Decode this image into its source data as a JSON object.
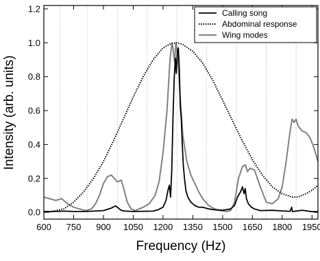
{
  "chart_data": {
    "type": "line",
    "title": "",
    "xlabel": "Frequency (Hz)",
    "ylabel": "Intensity (arb. units)",
    "xlim": [
      600,
      1980
    ],
    "ylim": [
      -0.04,
      1.22
    ],
    "xticks": [
      600,
      750,
      900,
      1050,
      1200,
      1350,
      1500,
      1650,
      1800,
      1950
    ],
    "yticks": [
      0.0,
      0.2,
      0.4,
      0.6,
      0.8,
      1.0,
      1.2
    ],
    "xtick_labels": [
      "600",
      "750",
      "900",
      "1050",
      "1200",
      "1350",
      "1500",
      "1650",
      "1800",
      "1950"
    ],
    "ytick_labels": [
      "0.0",
      "0.2",
      "0.4",
      "0.6",
      "0.8",
      "1.0",
      "1.2"
    ],
    "vertical_gridlines": [
      680,
      820,
      970,
      1120,
      1270,
      1420,
      1570,
      1720,
      1870
    ],
    "legend_position": "top-right",
    "series": [
      {
        "name": "Calling song",
        "style": "solid",
        "color": "#000000",
        "x": [
          600,
          650,
          700,
          750,
          800,
          850,
          900,
          940,
          960,
          970,
          985,
          1000,
          1050,
          1100,
          1150,
          1175,
          1200,
          1215,
          1225,
          1232,
          1238,
          1244,
          1250,
          1256,
          1262,
          1267,
          1272,
          1277,
          1282,
          1287,
          1292,
          1297,
          1302,
          1308,
          1315,
          1325,
          1340,
          1360,
          1380,
          1400,
          1430,
          1460,
          1500,
          1540,
          1560,
          1575,
          1590,
          1600,
          1608,
          1614,
          1620,
          1630,
          1645,
          1660,
          1690,
          1750,
          1800,
          1840,
          1848,
          1851,
          1856,
          1900,
          1950,
          1980
        ],
        "y": [
          0.005,
          0.005,
          0.007,
          0.005,
          0.005,
          0.007,
          0.01,
          0.025,
          0.038,
          0.03,
          0.015,
          0.008,
          0.005,
          0.006,
          0.007,
          0.015,
          0.03,
          0.07,
          0.13,
          0.16,
          0.09,
          0.25,
          0.55,
          0.78,
          0.91,
          0.82,
          0.95,
          0.97,
          0.85,
          0.62,
          0.55,
          0.4,
          0.28,
          0.2,
          0.13,
          0.09,
          0.06,
          0.04,
          0.03,
          0.03,
          0.02,
          0.015,
          0.012,
          0.02,
          0.04,
          0.09,
          0.12,
          0.15,
          0.11,
          0.14,
          0.08,
          0.05,
          0.03,
          0.02,
          0.01,
          0.012,
          0.008,
          0.006,
          0.03,
          0.005,
          0.005,
          0.012,
          0.004,
          0.004
        ]
      },
      {
        "name": "Abdominal response",
        "style": "dotted",
        "color": "#000000",
        "x": [
          620,
          700,
          750,
          800,
          850,
          900,
          950,
          1000,
          1050,
          1100,
          1150,
          1200,
          1240,
          1270,
          1300,
          1350,
          1400,
          1450,
          1500,
          1550,
          1600,
          1650,
          1700,
          1750,
          1800,
          1850,
          1880,
          1920,
          1950,
          1980
        ],
        "y": [
          0.0,
          0.02,
          0.06,
          0.12,
          0.2,
          0.3,
          0.42,
          0.55,
          0.68,
          0.8,
          0.9,
          0.97,
          0.995,
          1.0,
          0.99,
          0.95,
          0.88,
          0.78,
          0.66,
          0.54,
          0.42,
          0.31,
          0.22,
          0.15,
          0.11,
          0.09,
          0.09,
          0.11,
          0.13,
          0.16
        ]
      },
      {
        "name": "Wing modes",
        "style": "solid",
        "color": "#808080",
        "x": [
          600,
          630,
          660,
          690,
          720,
          750,
          780,
          810,
          840,
          860,
          880,
          900,
          920,
          940,
          955,
          970,
          990,
          1000,
          1020,
          1040,
          1060,
          1080,
          1100,
          1130,
          1160,
          1180,
          1200,
          1220,
          1235,
          1245,
          1250,
          1258,
          1265,
          1275,
          1285,
          1300,
          1320,
          1340,
          1360,
          1380,
          1400,
          1430,
          1460,
          1490,
          1520,
          1540,
          1560,
          1580,
          1600,
          1615,
          1625,
          1640,
          1660,
          1690,
          1720,
          1750,
          1780,
          1800,
          1820,
          1840,
          1850,
          1860,
          1870,
          1880,
          1900,
          1920,
          1940,
          1960,
          1980
        ],
        "y": [
          0.09,
          0.08,
          0.07,
          0.08,
          0.05,
          0.03,
          0.02,
          0.01,
          0.02,
          0.05,
          0.1,
          0.17,
          0.21,
          0.22,
          0.2,
          0.18,
          0.19,
          0.15,
          0.06,
          0.02,
          0.01,
          0.02,
          0.03,
          0.05,
          0.1,
          0.18,
          0.35,
          0.6,
          0.9,
          1.0,
          0.97,
          0.89,
          1.0,
          0.92,
          0.7,
          0.45,
          0.3,
          0.22,
          0.17,
          0.12,
          0.08,
          0.04,
          0.02,
          0.01,
          0.005,
          0.01,
          0.06,
          0.2,
          0.27,
          0.28,
          0.24,
          0.26,
          0.25,
          0.15,
          0.06,
          0.05,
          0.08,
          0.15,
          0.3,
          0.48,
          0.55,
          0.53,
          0.55,
          0.51,
          0.48,
          0.47,
          0.44,
          0.38,
          0.3
        ]
      }
    ]
  }
}
